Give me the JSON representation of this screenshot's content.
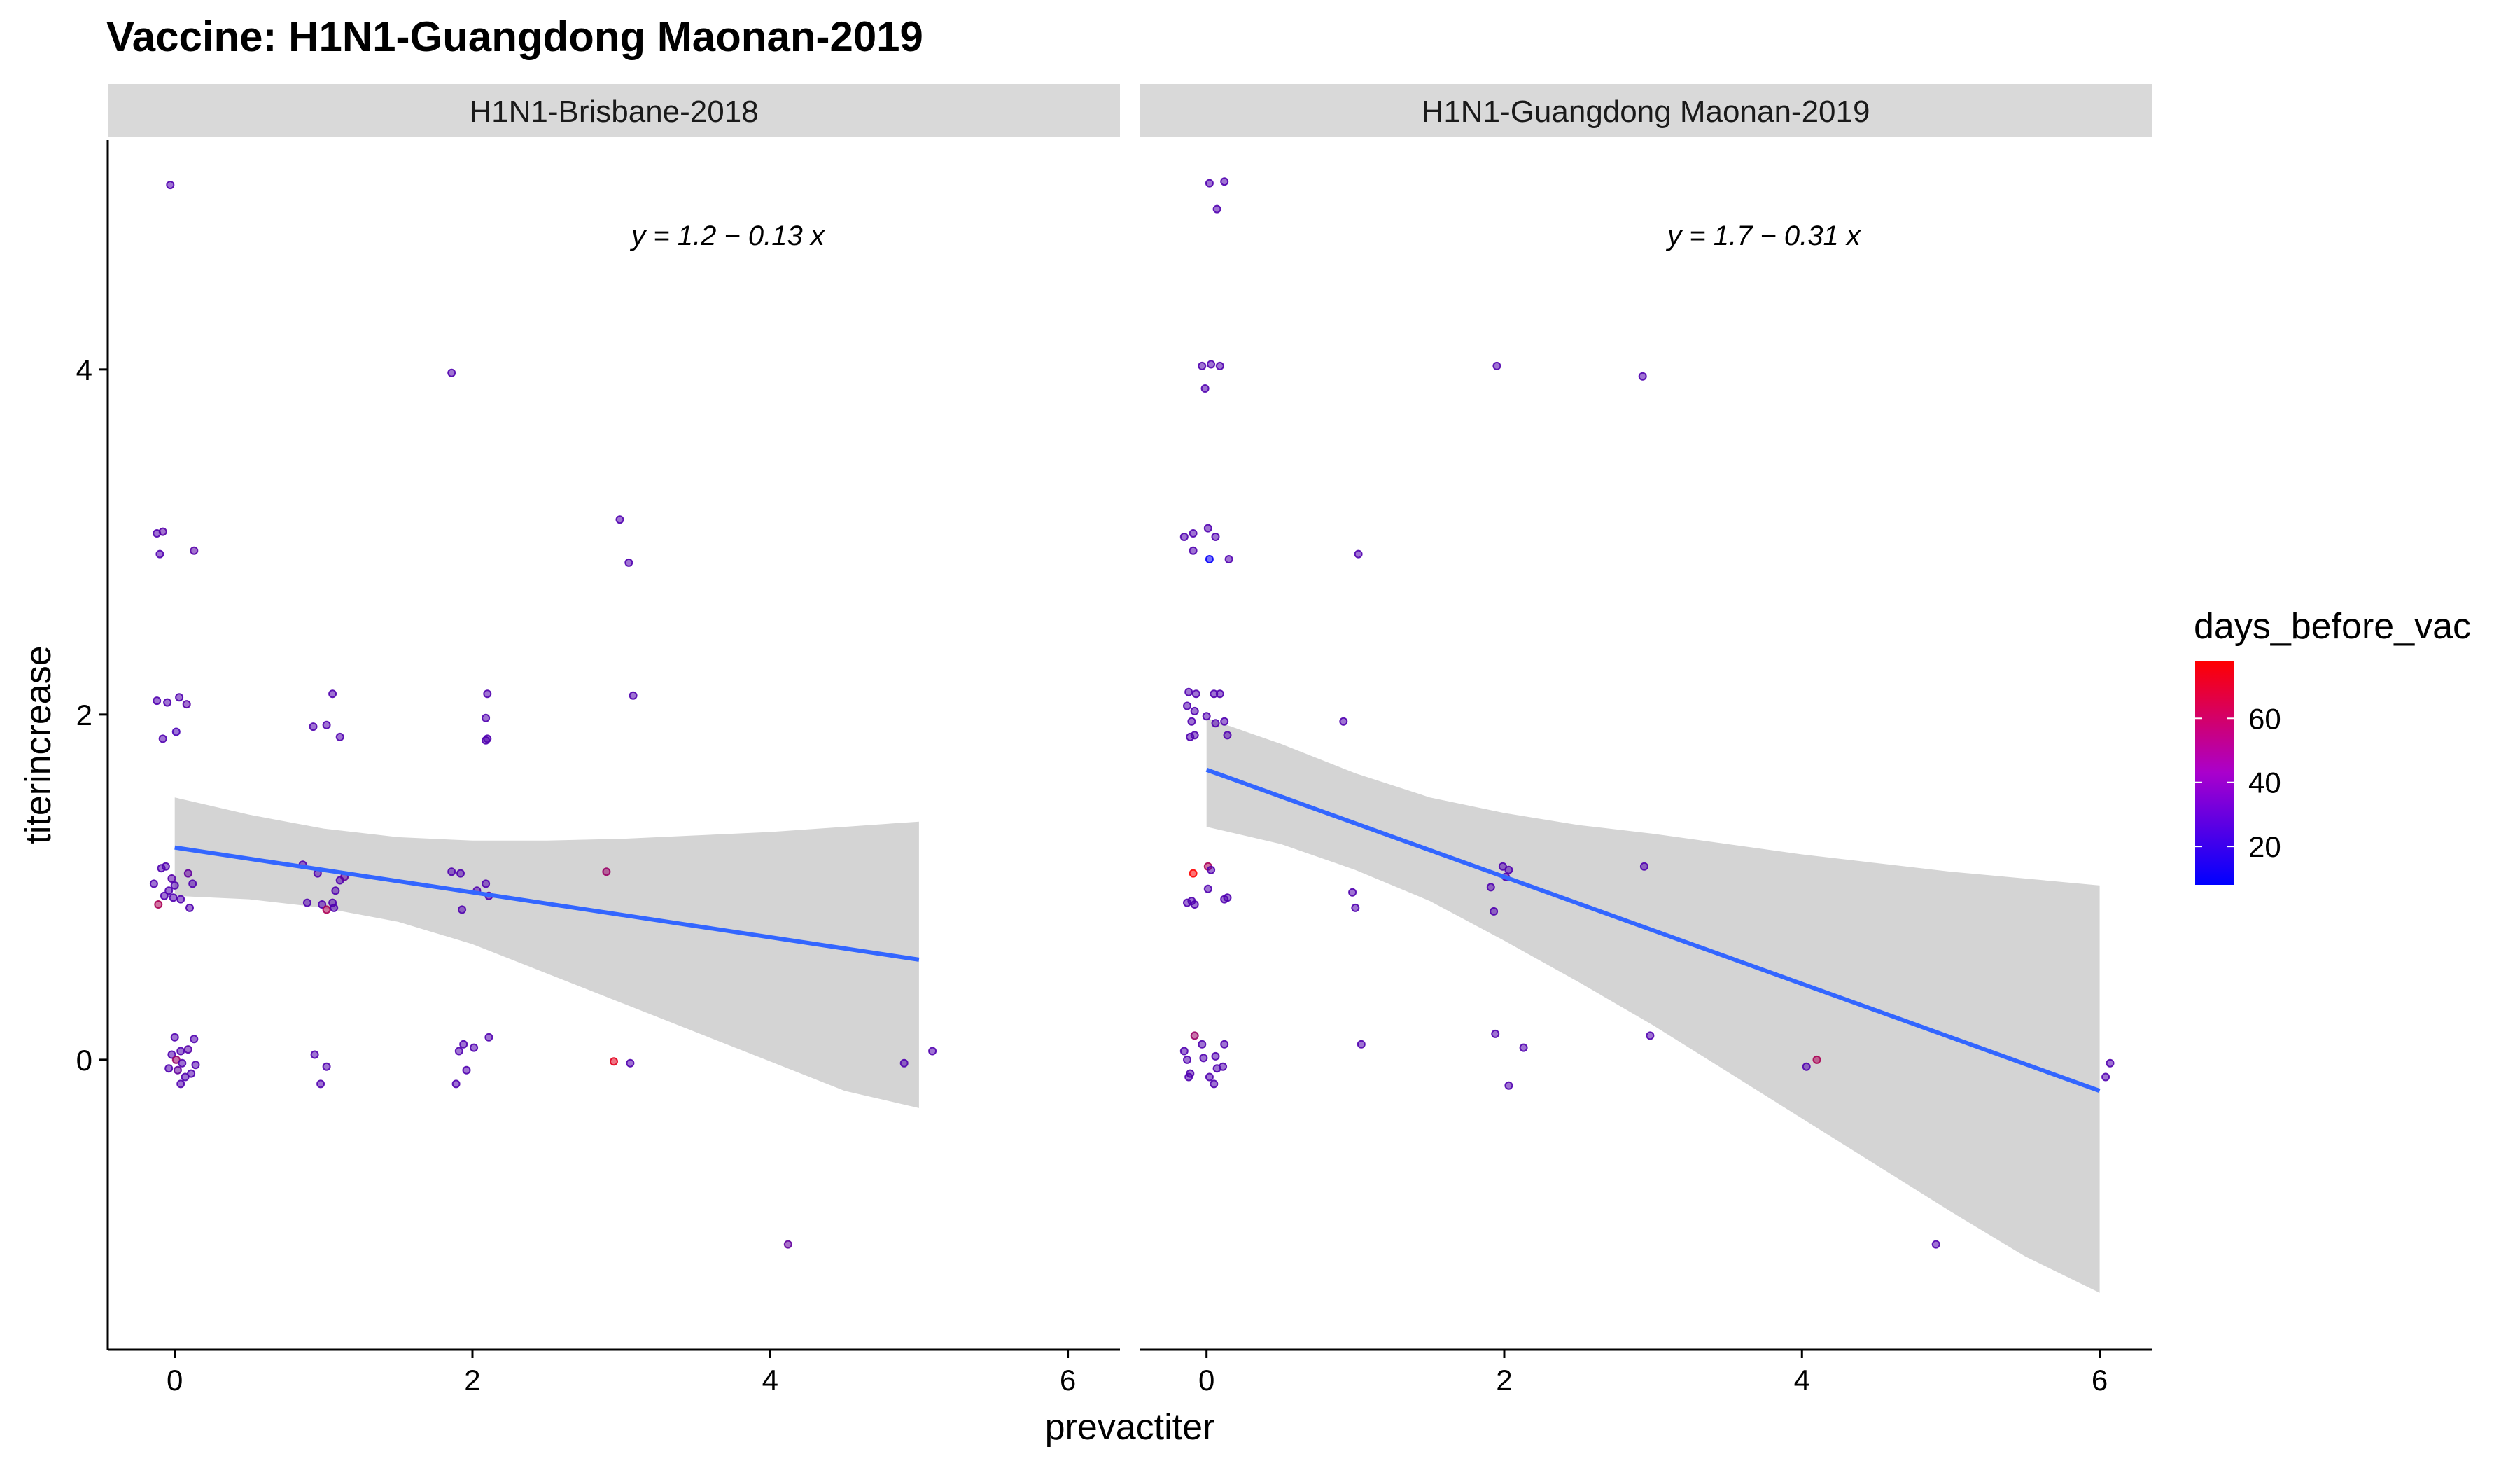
{
  "chart_data": {
    "type": "scatter",
    "title": "Vaccine: H1N1-Guangdong Maonan-2019",
    "xlabel": "prevactiter",
    "ylabel": "titerincrease",
    "xlim": [
      -0.45,
      6.35
    ],
    "ylim": [
      -1.68,
      5.33
    ],
    "x_ticks": [
      0,
      2,
      4,
      6
    ],
    "y_ticks": [
      0,
      2,
      4
    ],
    "grid": false,
    "legend": {
      "title": "days_before_vac",
      "position": "right",
      "type": "colorbar",
      "ticks": [
        20,
        40,
        60
      ],
      "range": [
        8,
        78
      ],
      "low_color": "#0000ff",
      "high_color": "#ff0000"
    },
    "colors": {
      "fit_line": "#3366ff",
      "ribbon": "#d4d4d4",
      "strip": "#d9d9d9"
    },
    "facets": [
      {
        "label": "H1N1-Brisbane-2018",
        "equation": "y = 1.2 − 0.13 x",
        "fit": {
          "intercept": 1.23,
          "slope": -0.13,
          "x_range": [
            0,
            5
          ]
        },
        "ribbon": [
          [
            0,
            0.95,
            1.52
          ],
          [
            0.5,
            0.93,
            1.42
          ],
          [
            1,
            0.88,
            1.34
          ],
          [
            1.5,
            0.8,
            1.29
          ],
          [
            2,
            0.67,
            1.27
          ],
          [
            2.5,
            0.5,
            1.27
          ],
          [
            3,
            0.33,
            1.28
          ],
          [
            3.5,
            0.16,
            1.3
          ],
          [
            4,
            -0.01,
            1.32
          ],
          [
            4.5,
            -0.18,
            1.35
          ],
          [
            5,
            -0.28,
            1.38
          ]
        ],
        "points": [
          [
            -0.03,
            5.07,
            30
          ],
          [
            -0.12,
            3.05,
            30
          ],
          [
            -0.08,
            3.06,
            32
          ],
          [
            -0.1,
            2.93,
            30
          ],
          [
            0.13,
            2.95,
            32
          ],
          [
            -0.12,
            2.08,
            30
          ],
          [
            -0.05,
            2.07,
            30
          ],
          [
            0.03,
            2.1,
            30
          ],
          [
            0.08,
            2.06,
            32
          ],
          [
            -0.08,
            1.86,
            30
          ],
          [
            0.01,
            1.9,
            28
          ],
          [
            -0.14,
            1.02,
            30
          ],
          [
            -0.09,
            1.11,
            30
          ],
          [
            -0.06,
            1.12,
            30
          ],
          [
            0.09,
            1.08,
            35
          ],
          [
            -0.02,
            1.05,
            32
          ],
          [
            0.0,
            1.01,
            30
          ],
          [
            -0.04,
            0.98,
            30
          ],
          [
            0.12,
            1.02,
            30
          ],
          [
            -0.01,
            0.94,
            30
          ],
          [
            -0.11,
            0.9,
            55
          ],
          [
            0.1,
            0.88,
            30
          ],
          [
            -0.07,
            0.95,
            30
          ],
          [
            0.04,
            0.93,
            30
          ],
          [
            0.0,
            0.13,
            30
          ],
          [
            0.13,
            0.12,
            30
          ],
          [
            0.04,
            0.05,
            30
          ],
          [
            -0.02,
            0.03,
            30
          ],
          [
            0.09,
            0.06,
            32
          ],
          [
            0.01,
            0.0,
            50
          ],
          [
            0.05,
            -0.02,
            30
          ],
          [
            0.02,
            -0.06,
            35
          ],
          [
            0.14,
            -0.03,
            30
          ],
          [
            -0.04,
            -0.05,
            30
          ],
          [
            0.07,
            -0.1,
            30
          ],
          [
            0.04,
            -0.14,
            30
          ],
          [
            0.11,
            -0.08,
            30
          ],
          [
            1.06,
            2.12,
            30
          ],
          [
            0.93,
            1.93,
            30
          ],
          [
            1.02,
            1.94,
            30
          ],
          [
            1.11,
            1.87,
            30
          ],
          [
            0.86,
            1.13,
            30
          ],
          [
            0.96,
            1.08,
            30
          ],
          [
            1.11,
            1.04,
            30
          ],
          [
            1.14,
            1.06,
            35
          ],
          [
            1.08,
            0.98,
            30
          ],
          [
            0.89,
            0.91,
            30
          ],
          [
            0.99,
            0.9,
            30
          ],
          [
            1.02,
            0.87,
            55
          ],
          [
            1.06,
            0.91,
            30
          ],
          [
            1.07,
            0.88,
            30
          ],
          [
            0.94,
            0.03,
            30
          ],
          [
            1.02,
            -0.04,
            30
          ],
          [
            0.98,
            -0.14,
            30
          ],
          [
            1.86,
            3.98,
            30
          ],
          [
            2.1,
            2.12,
            30
          ],
          [
            2.09,
            1.98,
            30
          ],
          [
            2.09,
            1.85,
            30
          ],
          [
            2.1,
            1.86,
            30
          ],
          [
            1.86,
            1.09,
            30
          ],
          [
            1.92,
            1.08,
            30
          ],
          [
            2.03,
            0.98,
            30
          ],
          [
            2.09,
            1.02,
            30
          ],
          [
            2.11,
            0.95,
            30
          ],
          [
            1.93,
            0.87,
            30
          ],
          [
            1.94,
            0.09,
            30
          ],
          [
            1.91,
            0.05,
            30
          ],
          [
            2.01,
            0.07,
            30
          ],
          [
            2.11,
            0.13,
            30
          ],
          [
            1.96,
            -0.06,
            30
          ],
          [
            1.89,
            -0.14,
            30
          ],
          [
            2.99,
            3.13,
            30
          ],
          [
            3.05,
            2.88,
            30
          ],
          [
            3.08,
            2.11,
            30
          ],
          [
            2.9,
            1.09,
            50
          ],
          [
            2.95,
            -0.01,
            70
          ],
          [
            3.06,
            -0.02,
            30
          ],
          [
            4.12,
            -1.07,
            35
          ],
          [
            4.9,
            -0.02,
            30
          ],
          [
            5.09,
            0.05,
            30
          ]
        ]
      },
      {
        "label": "H1N1-Guangdong Maonan-2019",
        "equation": "y = 1.7 − 0.31 x",
        "fit": {
          "intercept": 1.68,
          "slope": -0.31,
          "x_range": [
            0,
            6
          ]
        },
        "ribbon": [
          [
            0,
            1.35,
            1.98
          ],
          [
            0.5,
            1.25,
            1.83
          ],
          [
            1,
            1.1,
            1.66
          ],
          [
            1.5,
            0.92,
            1.52
          ],
          [
            2,
            0.69,
            1.43
          ],
          [
            2.5,
            0.45,
            1.36
          ],
          [
            3,
            0.2,
            1.31
          ],
          [
            3.5,
            -0.07,
            1.25
          ],
          [
            4,
            -0.34,
            1.19
          ],
          [
            4.5,
            -0.61,
            1.14
          ],
          [
            5,
            -0.88,
            1.09
          ],
          [
            5.5,
            -1.14,
            1.05
          ],
          [
            6,
            -1.35,
            1.01
          ]
        ],
        "points": [
          [
            0.02,
            5.08,
            30
          ],
          [
            0.12,
            5.09,
            30
          ],
          [
            0.07,
            4.93,
            30
          ],
          [
            -0.03,
            4.02,
            30
          ],
          [
            0.03,
            4.03,
            30
          ],
          [
            0.09,
            4.02,
            30
          ],
          [
            -0.01,
            3.89,
            30
          ],
          [
            -0.15,
            3.03,
            30
          ],
          [
            -0.09,
            3.05,
            30
          ],
          [
            0.01,
            3.08,
            30
          ],
          [
            0.06,
            3.03,
            30
          ],
          [
            -0.09,
            2.95,
            30
          ],
          [
            0.15,
            2.9,
            30
          ],
          [
            0.02,
            2.9,
            10
          ],
          [
            -0.12,
            2.13,
            30
          ],
          [
            -0.07,
            2.12,
            30
          ],
          [
            0.05,
            2.12,
            30
          ],
          [
            0.09,
            2.12,
            30
          ],
          [
            -0.13,
            2.05,
            30
          ],
          [
            -0.08,
            2.02,
            30
          ],
          [
            0.0,
            1.99,
            30
          ],
          [
            0.06,
            1.95,
            30
          ],
          [
            0.12,
            1.96,
            30
          ],
          [
            -0.1,
            1.96,
            30
          ],
          [
            0.14,
            1.88,
            30
          ],
          [
            -0.11,
            1.87,
            30
          ],
          [
            -0.08,
            1.88,
            30
          ],
          [
            -0.09,
            1.08,
            78
          ],
          [
            0.01,
            1.12,
            55
          ],
          [
            0.03,
            1.1,
            30
          ],
          [
            0.01,
            0.99,
            30
          ],
          [
            0.14,
            0.94,
            30
          ],
          [
            0.12,
            0.93,
            30
          ],
          [
            -0.13,
            0.91,
            30
          ],
          [
            -0.08,
            0.9,
            30
          ],
          [
            -0.1,
            0.92,
            30
          ],
          [
            -0.08,
            0.14,
            50
          ],
          [
            -0.03,
            0.09,
            30
          ],
          [
            0.06,
            0.02,
            30
          ],
          [
            0.12,
            0.09,
            30
          ],
          [
            -0.15,
            0.05,
            30
          ],
          [
            -0.13,
            0.0,
            30
          ],
          [
            -0.02,
            0.01,
            30
          ],
          [
            0.07,
            -0.05,
            30
          ],
          [
            0.11,
            -0.04,
            30
          ],
          [
            -0.11,
            -0.08,
            30
          ],
          [
            -0.12,
            -0.1,
            30
          ],
          [
            0.02,
            -0.1,
            30
          ],
          [
            0.05,
            -0.14,
            30
          ],
          [
            1.02,
            2.93,
            30
          ],
          [
            0.92,
            1.96,
            30
          ],
          [
            0.98,
            0.97,
            30
          ],
          [
            1.0,
            0.88,
            30
          ],
          [
            1.04,
            0.09,
            30
          ],
          [
            1.95,
            4.02,
            30
          ],
          [
            1.99,
            1.12,
            30
          ],
          [
            2.03,
            1.1,
            30
          ],
          [
            1.91,
            1.0,
            30
          ],
          [
            2.01,
            1.06,
            30
          ],
          [
            1.93,
            0.86,
            30
          ],
          [
            1.94,
            0.15,
            30
          ],
          [
            2.13,
            0.07,
            30
          ],
          [
            2.03,
            -0.15,
            30
          ],
          [
            2.93,
            3.96,
            30
          ],
          [
            2.94,
            1.12,
            30
          ],
          [
            2.98,
            0.14,
            30
          ],
          [
            4.03,
            -0.04,
            30
          ],
          [
            4.1,
            0.0,
            55
          ],
          [
            4.9,
            -1.07,
            30
          ],
          [
            6.07,
            -0.02,
            30
          ],
          [
            6.04,
            -0.1,
            30
          ]
        ]
      }
    ]
  }
}
